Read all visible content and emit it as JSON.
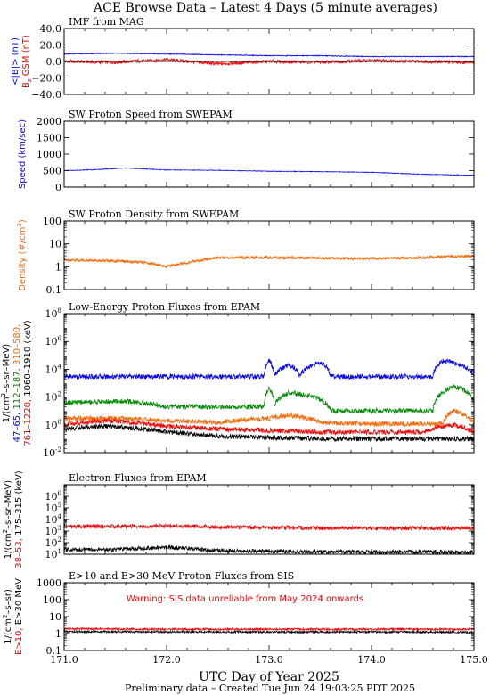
{
  "title": "ACE Browse Data  –  Latest 4 Days (5 minute averages)",
  "footer": "Preliminary data – Created Tue Jun 24 19:03:25 PDT 2025",
  "colors": {
    "blue": "#0000ff",
    "red": "#ff0000",
    "green": "#008c00",
    "orange": "#ff6400",
    "black": "#000000"
  },
  "chart_data": [
    {
      "type": "line",
      "title": "IMF from MAG",
      "ylabel_parts": [
        "<|B|> (nT)",
        "B",
        "z",
        " GSM (nT)"
      ],
      "ylim": [
        -40,
        40
      ],
      "yticks": [
        -40,
        -20,
        0,
        20,
        40
      ],
      "ytick_labels": [
        "−40.0",
        "−20.0",
        "0.0",
        "20.0",
        "40.0"
      ],
      "xlim": [
        171.0,
        175.0
      ],
      "series": [
        {
          "name": "<|B|>",
          "color": "#0000ff",
          "x": [
            171.0,
            171.5,
            172.0,
            172.5,
            173.0,
            173.5,
            174.0,
            174.5,
            175.0
          ],
          "values": [
            9,
            10,
            9,
            8,
            7,
            7,
            6,
            6,
            6
          ]
        },
        {
          "name": "Bz GSM",
          "color": "#ff0000",
          "x": [
            171.0,
            171.5,
            172.0,
            172.5,
            173.0,
            173.5,
            174.0,
            174.5,
            175.0
          ],
          "values": [
            0,
            -1,
            2,
            -3,
            0,
            -1,
            1,
            0,
            -1
          ]
        }
      ]
    },
    {
      "type": "line",
      "title": "SW Proton Speed from SWEPAM",
      "ylabel": "Speed (km/sec)",
      "ylim": [
        0,
        2000
      ],
      "yticks": [
        0,
        500,
        1000,
        1500,
        2000
      ],
      "ytick_labels": [
        "0",
        "500",
        "1000",
        "1500",
        "2000"
      ],
      "xlim": [
        171.0,
        175.0
      ],
      "series": [
        {
          "name": "Speed",
          "color": "#0000ff",
          "x": [
            171.0,
            171.3,
            171.6,
            172.0,
            172.5,
            173.0,
            173.5,
            174.0,
            174.5,
            175.0
          ],
          "values": [
            500,
            530,
            580,
            520,
            510,
            480,
            470,
            450,
            390,
            360
          ]
        }
      ]
    },
    {
      "type": "line",
      "title": "SW Proton Density from SWEPAM",
      "ylabel_parts": [
        "Density (#/cm",
        "3",
        ")"
      ],
      "scale": "log",
      "ylim": [
        0.1,
        100
      ],
      "yticks": [
        0.1,
        1,
        10,
        100
      ],
      "ytick_labels": [
        "0.1",
        "1",
        "10",
        "100"
      ],
      "xlim": [
        171.0,
        175.0
      ],
      "series": [
        {
          "name": "Density",
          "color": "#ff6400",
          "x": [
            171.0,
            171.5,
            171.8,
            172.0,
            172.2,
            172.5,
            173.0,
            173.5,
            174.0,
            174.5,
            175.0
          ],
          "values": [
            2,
            1.8,
            1.5,
            1,
            1.5,
            2.5,
            2.5,
            2.4,
            2.3,
            2.5,
            3
          ]
        }
      ]
    },
    {
      "type": "line",
      "title": "Low-Energy Proton Fluxes from EPAM",
      "ylabel_parts": [
        "1/(cm",
        "2",
        "–s–sr–MeV)"
      ],
      "energy_labels": [
        "47–65,",
        "112–187,",
        "310–580,",
        "761–1220,",
        "1060–1910 (keV)"
      ],
      "scale": "log",
      "ylim": [
        0.01,
        100000000
      ],
      "yticks": [
        0.01,
        1,
        100,
        10000,
        1000000,
        100000000
      ],
      "ytick_labels": [
        "10",
        "10",
        "10",
        "10",
        "10",
        "10"
      ],
      "ytick_exponents": [
        "-2",
        "0",
        "2",
        "4",
        "6",
        "8"
      ],
      "xlim": [
        171.0,
        175.0
      ],
      "series": [
        {
          "name": "47–65 keV",
          "color": "#0000ff",
          "x": [
            171.0,
            171.6,
            172.0,
            172.95,
            173.0,
            173.05,
            173.2,
            173.3,
            173.5,
            173.6,
            174.0,
            174.6,
            174.7,
            174.8,
            175.0
          ],
          "values": [
            3000,
            3000,
            3000,
            3000,
            40000,
            3000,
            20000,
            3000,
            30000,
            3000,
            3000,
            3000,
            40000,
            30000,
            3000
          ]
        },
        {
          "name": "112–187 keV",
          "color": "#008c00",
          "x": [
            171.0,
            171.6,
            172.0,
            172.95,
            173.0,
            173.05,
            173.2,
            173.35,
            173.6,
            174.0,
            174.6,
            174.7,
            174.8,
            175.0
          ],
          "values": [
            40,
            50,
            20,
            20,
            400,
            20,
            200,
            150,
            10,
            10,
            10,
            200,
            600,
            30
          ]
        },
        {
          "name": "310–580 keV",
          "color": "#ff6400",
          "x": [
            171.0,
            171.5,
            172.0,
            172.5,
            173.0,
            173.2,
            173.5,
            174.0,
            174.7,
            174.8,
            175.0
          ],
          "values": [
            3,
            3,
            2,
            1.5,
            3,
            5,
            1.5,
            1.2,
            1.2,
            10,
            1
          ]
        },
        {
          "name": "761–1220 keV",
          "color": "#ff0000",
          "x": [
            171.0,
            171.4,
            172.0,
            172.5,
            173.0,
            173.5,
            174.0,
            174.5,
            174.8,
            175.0
          ],
          "values": [
            1,
            2,
            0.8,
            0.5,
            0.4,
            0.3,
            0.3,
            0.3,
            1,
            0.3
          ]
        },
        {
          "name": "1060–1910 keV",
          "color": "#000000",
          "x": [
            171.0,
            171.4,
            172.0,
            172.5,
            173.0,
            173.5,
            174.0,
            174.5,
            175.0
          ],
          "values": [
            0.5,
            0.8,
            0.3,
            0.15,
            0.12,
            0.1,
            0.1,
            0.1,
            0.1
          ]
        }
      ]
    },
    {
      "type": "line",
      "title": "Electron Fluxes from EPAM",
      "ylabel_parts": [
        "1/(cm",
        "2",
        "–s–sr–MeV)"
      ],
      "energy_labels": [
        "38–53,",
        "175–315 (keV)"
      ],
      "scale": "log",
      "ylim": [
        10,
        10000000
      ],
      "yticks": [
        10,
        100,
        1000,
        10000,
        100000,
        1000000
      ],
      "ytick_labels": [
        "10",
        "10",
        "10",
        "10",
        "10",
        "10"
      ],
      "ytick_exponents": [
        "1",
        "2",
        "3",
        "4",
        "5",
        "6"
      ],
      "xlim": [
        171.0,
        175.0
      ],
      "series": [
        {
          "name": "38–53 keV",
          "color": "#ff0000",
          "x": [
            171.0,
            171.5,
            172.0,
            172.5,
            173.0,
            173.5,
            174.0,
            174.5,
            175.0
          ],
          "values": [
            2500,
            2500,
            2800,
            2200,
            2000,
            1800,
            1800,
            1800,
            1800
          ]
        },
        {
          "name": "175–315 keV",
          "color": "#000000",
          "x": [
            171.0,
            171.5,
            172.0,
            172.5,
            173.0,
            173.5,
            174.0,
            174.5,
            175.0
          ],
          "values": [
            25,
            25,
            40,
            20,
            18,
            16,
            16,
            16,
            15
          ]
        }
      ]
    },
    {
      "type": "line",
      "title": "E>10 and E>30 MeV Proton Fluxes from SIS",
      "ylabel_parts": [
        "1/(cm",
        "2",
        "–s–sr)"
      ],
      "energy_labels": [
        "E>10,",
        "E>30 MeV"
      ],
      "warning": "Warning: SIS data unreliable from May 2024 onwards",
      "scale": "log",
      "ylim": [
        0.1,
        1000
      ],
      "yticks": [
        0.1,
        1,
        10,
        100,
        1000
      ],
      "ytick_labels": [
        "0.1",
        "1",
        "10",
        "100",
        "1000"
      ],
      "xlim": [
        171.0,
        175.0
      ],
      "xticks": [
        171.0,
        172.0,
        173.0,
        174.0,
        175.0
      ],
      "xtick_labels": [
        "171.0",
        "172.0",
        "173.0",
        "174.0",
        "175.0"
      ],
      "xlabel": "UTC Day of Year 2025",
      "series": [
        {
          "name": "E>10 MeV",
          "color": "#ff0000",
          "x": [
            171.0,
            172.0,
            173.0,
            174.0,
            175.0
          ],
          "values": [
            1.9,
            1.8,
            1.8,
            1.8,
            1.8
          ]
        },
        {
          "name": "E>30 MeV",
          "color": "#000000",
          "x": [
            171.0,
            172.0,
            173.0,
            174.0,
            175.0
          ],
          "values": [
            1.3,
            1.25,
            1.25,
            1.25,
            1.2
          ]
        }
      ]
    }
  ]
}
